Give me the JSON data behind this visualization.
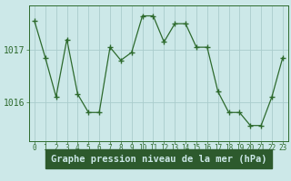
{
  "x": [
    0,
    1,
    2,
    3,
    4,
    5,
    6,
    7,
    8,
    9,
    10,
    11,
    12,
    13,
    14,
    15,
    16,
    17,
    18,
    19,
    20,
    21,
    22,
    23
  ],
  "y": [
    1017.55,
    1016.85,
    1016.1,
    1017.2,
    1016.15,
    1015.8,
    1015.8,
    1017.05,
    1016.8,
    1016.95,
    1017.65,
    1017.65,
    1017.15,
    1017.5,
    1017.5,
    1017.05,
    1017.05,
    1016.2,
    1015.8,
    1015.8,
    1015.55,
    1015.55,
    1016.1,
    1016.85
  ],
  "line_color": "#2d6a2d",
  "marker": "+",
  "marker_size": 4,
  "marker_linewidth": 1.0,
  "line_width": 0.9,
  "bg_color": "#cce8e8",
  "plot_bg_color": "#cce8e8",
  "grid_color": "#aacccc",
  "ytick_labels": [
    "1016",
    "1017"
  ],
  "ytick_values": [
    1016.0,
    1017.0
  ],
  "xlabel": "Graphe pression niveau de la mer (hPa)",
  "xlabel_fontsize": 7.5,
  "xlabel_color": "#2d6a2d",
  "xlabel_bg": "#2d5a2d",
  "ylim": [
    1015.25,
    1017.85
  ],
  "xlim": [
    -0.5,
    23.5
  ],
  "ytick_fontsize": 7,
  "xtick_fontsize": 5.5
}
